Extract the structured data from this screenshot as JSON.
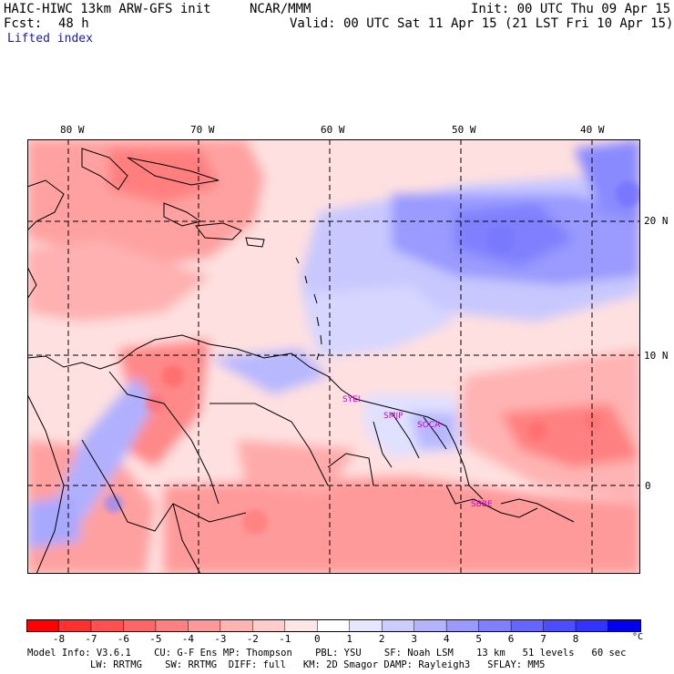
{
  "header": {
    "model": "HAIC-HIWC 13km ARW-GFS init",
    "org": "NCAR/MMM",
    "init": "Init: 00 UTC Thu 09 Apr 15",
    "fcst_label": "Fcst:",
    "fcst_value": "48 h",
    "valid": "Valid: 00 UTC Sat 11 Apr 15 (21 LST Fri 10 Apr 15)",
    "field": "Lifted index"
  },
  "map": {
    "lon_labels": [
      "80 W",
      "70 W",
      "60 W",
      "50 W",
      "40 W"
    ],
    "lat_labels": [
      "20 N",
      "10 N",
      "0"
    ],
    "stations": [
      "SYEI",
      "SMJP",
      "SOCA",
      "SBBE"
    ],
    "station_color": "#cc00cc"
  },
  "legend": {
    "ticks": [
      "-8",
      "-7",
      "-6",
      "-5",
      "-4",
      "-3",
      "-2",
      "-1",
      "0",
      "1",
      "2",
      "3",
      "4",
      "5",
      "6",
      "7",
      "8"
    ],
    "unit": "°C",
    "colors": [
      "#ff0000",
      "#ff3030",
      "#ff5050",
      "#ff6666",
      "#ff8080",
      "#ff9999",
      "#ffb3b3",
      "#ffcccc",
      "#ffe6e6",
      "#ffffff",
      "#e6e6ff",
      "#ccccff",
      "#b3b3ff",
      "#9999ff",
      "#8080ff",
      "#6666ff",
      "#4d4dff",
      "#3333ff",
      "#0000ee"
    ]
  },
  "model_info": {
    "line1": "Model Info: V3.6.1    CU: G-F Ens MP: Thompson    PBL: YSU    SF: Noah LSM    13 km   51 levels   60 sec",
    "line2": "LW: RRTMG    SW: RRTMG  DIFF: full   KM: 2D Smagor DAMP: Rayleigh3   SFLAY: MM5"
  }
}
